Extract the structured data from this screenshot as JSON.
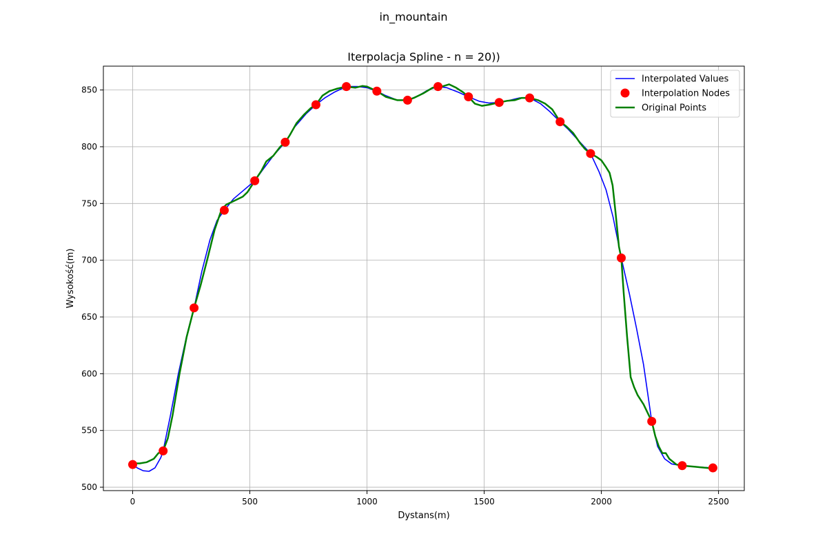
{
  "figure": {
    "suptitle": "in_mountain"
  },
  "chart_data": {
    "type": "line",
    "title": "Iterpolacja Spline - n = 20))",
    "xlabel": "Dystans(m)",
    "ylabel": "Wysokość(m)",
    "xlim": [
      -125,
      2610
    ],
    "ylim": [
      497,
      871
    ],
    "xticks": [
      0,
      500,
      1000,
      1500,
      2000,
      2500
    ],
    "yticks": [
      500,
      550,
      600,
      650,
      700,
      750,
      800,
      850
    ],
    "grid": true,
    "legend_position": "top-right",
    "series": [
      {
        "name": "Interpolated Values",
        "kind": "line",
        "color": "#0000ff",
        "points": [
          [
            0,
            520
          ],
          [
            20,
            517
          ],
          [
            45,
            514.5
          ],
          [
            70,
            514
          ],
          [
            95,
            517
          ],
          [
            120,
            526
          ],
          [
            130,
            532
          ],
          [
            160,
            562
          ],
          [
            195,
            600
          ],
          [
            230,
            633
          ],
          [
            262,
            658
          ],
          [
            295,
            690
          ],
          [
            330,
            718
          ],
          [
            360,
            735
          ],
          [
            391,
            744
          ],
          [
            430,
            754
          ],
          [
            470,
            761
          ],
          [
            521,
            770
          ],
          [
            560,
            781
          ],
          [
            600,
            792
          ],
          [
            651,
            804
          ],
          [
            690,
            817
          ],
          [
            740,
            829
          ],
          [
            782,
            837
          ],
          [
            820,
            843
          ],
          [
            860,
            848
          ],
          [
            912,
            853
          ],
          [
            960,
            853
          ],
          [
            1000,
            852
          ],
          [
            1042,
            849
          ],
          [
            1080,
            845
          ],
          [
            1130,
            841
          ],
          [
            1173,
            841
          ],
          [
            1220,
            845
          ],
          [
            1260,
            850
          ],
          [
            1303,
            853
          ],
          [
            1340,
            852
          ],
          [
            1390,
            848
          ],
          [
            1433,
            844
          ],
          [
            1480,
            840
          ],
          [
            1520,
            838.5
          ],
          [
            1564,
            839
          ],
          [
            1610,
            841
          ],
          [
            1650,
            843
          ],
          [
            1694,
            843
          ],
          [
            1740,
            838
          ],
          [
            1780,
            831
          ],
          [
            1824,
            822
          ],
          [
            1860,
            815
          ],
          [
            1900,
            806
          ],
          [
            1954,
            794
          ],
          [
            1990,
            778
          ],
          [
            2020,
            762
          ],
          [
            2050,
            738
          ],
          [
            2085,
            702
          ],
          [
            2120,
            670
          ],
          [
            2150,
            640
          ],
          [
            2180,
            608
          ],
          [
            2215,
            558
          ],
          [
            2240,
            536
          ],
          [
            2270,
            525
          ],
          [
            2300,
            520.5
          ],
          [
            2345,
            519
          ],
          [
            2400,
            518
          ],
          [
            2476,
            517
          ]
        ]
      },
      {
        "name": "Interpolation Nodes",
        "kind": "scatter",
        "color": "#ff0000",
        "points": [
          [
            0,
            520
          ],
          [
            130,
            532
          ],
          [
            262,
            658
          ],
          [
            391,
            744
          ],
          [
            521,
            770
          ],
          [
            651,
            804
          ],
          [
            782,
            837
          ],
          [
            912,
            853
          ],
          [
            1042,
            849
          ],
          [
            1173,
            841
          ],
          [
            1303,
            853
          ],
          [
            1433,
            844
          ],
          [
            1564,
            839
          ],
          [
            1694,
            843
          ],
          [
            1824,
            822
          ],
          [
            1954,
            794
          ],
          [
            2085,
            702
          ],
          [
            2215,
            558
          ],
          [
            2345,
            519
          ],
          [
            2476,
            517
          ]
        ]
      },
      {
        "name": "Original Points",
        "kind": "line",
        "color": "#008000",
        "points": [
          [
            0,
            521
          ],
          [
            30,
            521
          ],
          [
            60,
            522
          ],
          [
            90,
            525
          ],
          [
            110,
            530
          ],
          [
            130,
            532
          ],
          [
            150,
            543
          ],
          [
            170,
            563
          ],
          [
            200,
            600
          ],
          [
            230,
            632
          ],
          [
            262,
            658
          ],
          [
            290,
            678
          ],
          [
            320,
            702
          ],
          [
            350,
            727
          ],
          [
            380,
            745
          ],
          [
            400,
            749
          ],
          [
            430,
            752
          ],
          [
            470,
            756
          ],
          [
            490,
            760
          ],
          [
            521,
            770
          ],
          [
            550,
            779
          ],
          [
            570,
            787
          ],
          [
            600,
            792
          ],
          [
            630,
            800
          ],
          [
            651,
            804
          ],
          [
            670,
            810
          ],
          [
            700,
            821
          ],
          [
            730,
            828
          ],
          [
            760,
            834
          ],
          [
            782,
            837
          ],
          [
            810,
            845
          ],
          [
            840,
            849
          ],
          [
            870,
            851
          ],
          [
            912,
            853
          ],
          [
            950,
            852
          ],
          [
            980,
            853.5
          ],
          [
            1000,
            853
          ],
          [
            1042,
            849
          ],
          [
            1080,
            844
          ],
          [
            1130,
            841
          ],
          [
            1173,
            841
          ],
          [
            1200,
            843
          ],
          [
            1240,
            847
          ],
          [
            1280,
            852
          ],
          [
            1303,
            853
          ],
          [
            1320,
            853
          ],
          [
            1350,
            855
          ],
          [
            1380,
            852
          ],
          [
            1410,
            848
          ],
          [
            1433,
            844
          ],
          [
            1460,
            838
          ],
          [
            1490,
            836
          ],
          [
            1520,
            837
          ],
          [
            1564,
            839
          ],
          [
            1600,
            840.5
          ],
          [
            1630,
            841
          ],
          [
            1660,
            843
          ],
          [
            1694,
            843
          ],
          [
            1730,
            841
          ],
          [
            1760,
            838
          ],
          [
            1790,
            833
          ],
          [
            1824,
            822
          ],
          [
            1850,
            818
          ],
          [
            1880,
            812
          ],
          [
            1910,
            803
          ],
          [
            1930,
            798
          ],
          [
            1954,
            794
          ],
          [
            1980,
            791
          ],
          [
            2000,
            788
          ],
          [
            2020,
            782
          ],
          [
            2035,
            777
          ],
          [
            2048,
            766
          ],
          [
            2060,
            743
          ],
          [
            2075,
            712
          ],
          [
            2085,
            702
          ],
          [
            2095,
            672
          ],
          [
            2110,
            632
          ],
          [
            2125,
            597
          ],
          [
            2140,
            588
          ],
          [
            2155,
            581
          ],
          [
            2180,
            573
          ],
          [
            2215,
            558
          ],
          [
            2230,
            545
          ],
          [
            2245,
            536
          ],
          [
            2260,
            530
          ],
          [
            2275,
            530
          ],
          [
            2290,
            525
          ],
          [
            2320,
            520
          ],
          [
            2345,
            519
          ],
          [
            2400,
            518
          ],
          [
            2476,
            516.5
          ]
        ]
      }
    ]
  }
}
